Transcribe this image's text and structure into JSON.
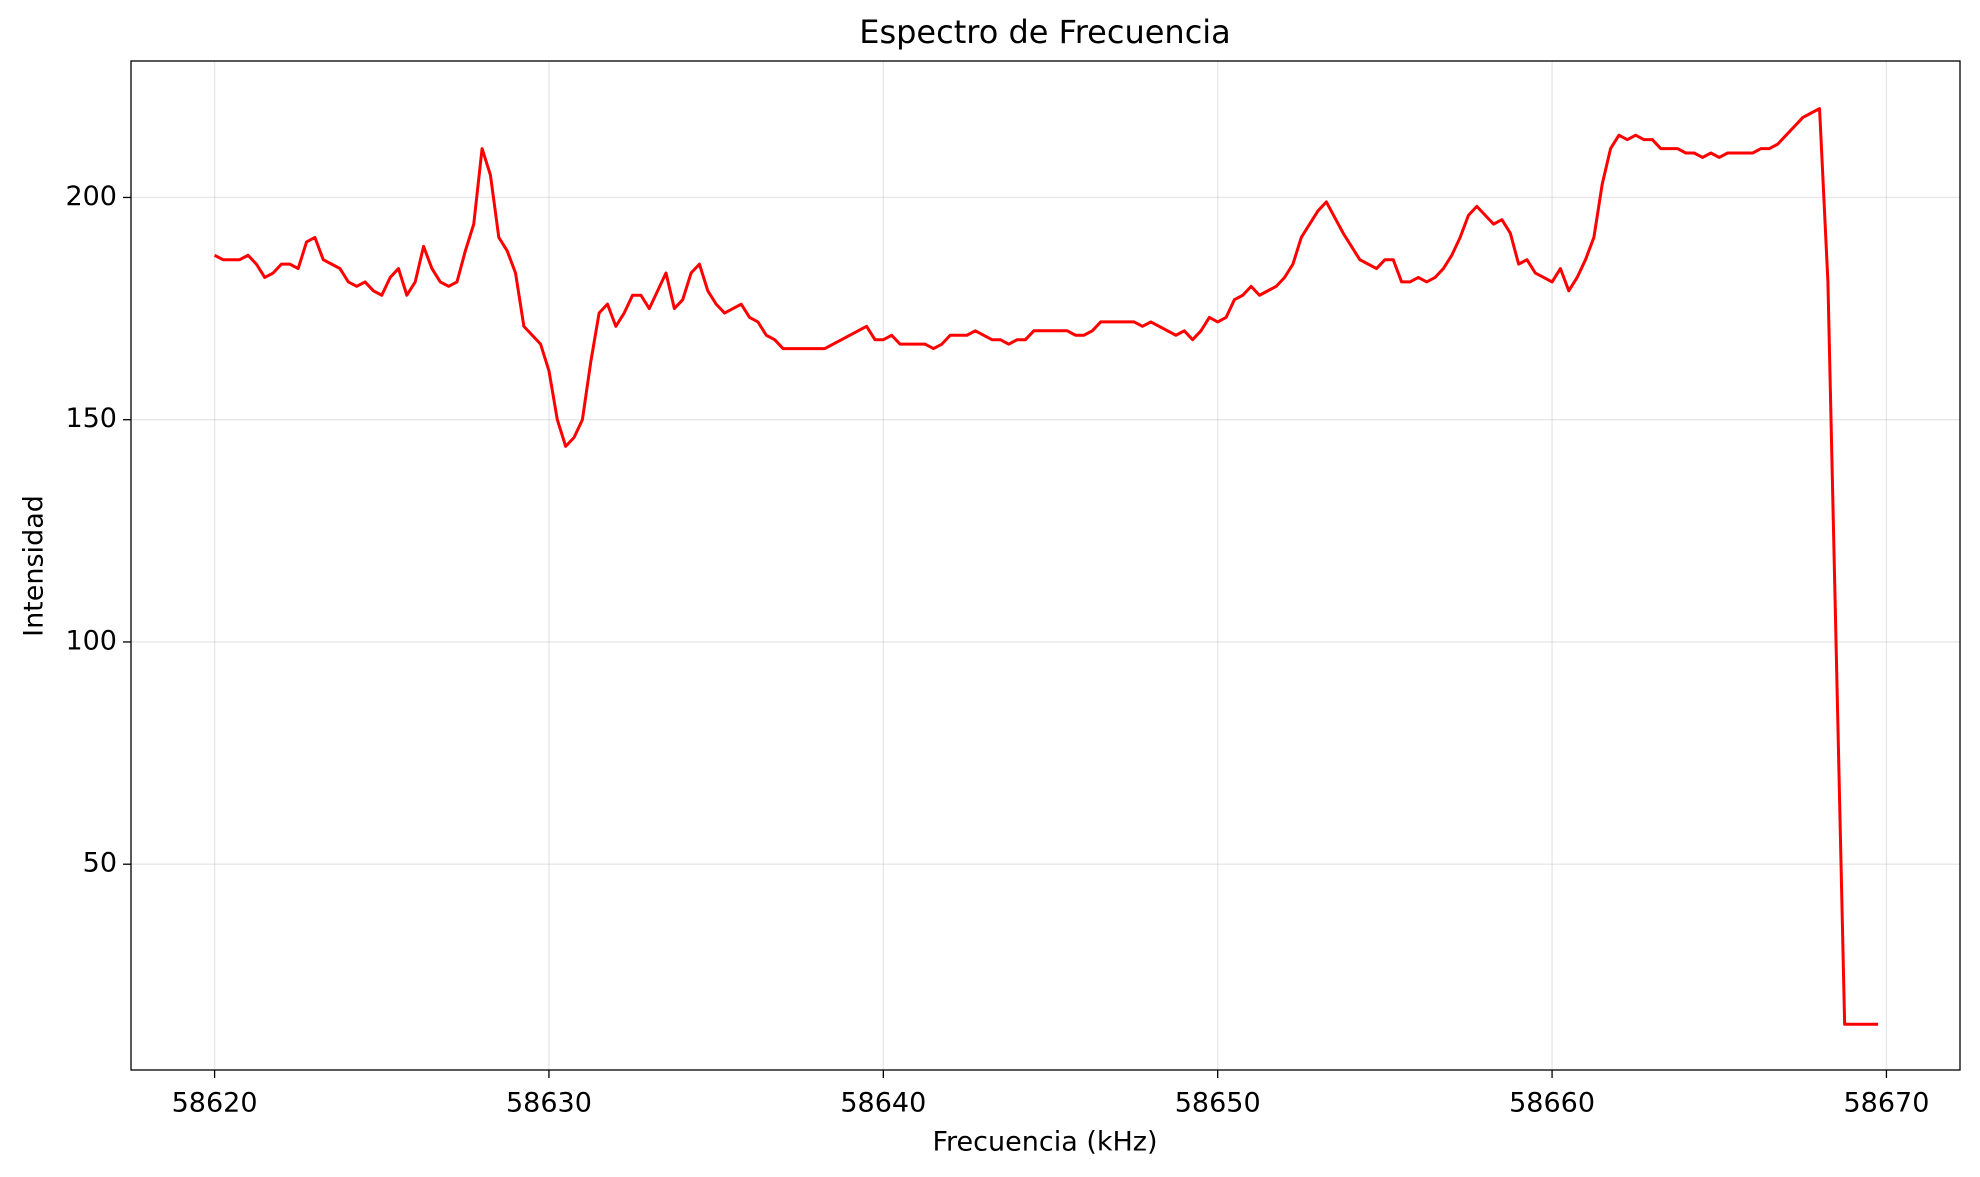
{
  "chart_data": {
    "type": "line",
    "title": "Espectro de Frecuencia",
    "xlabel": "Frecuencia (kHz)",
    "ylabel": "Intensidad",
    "x": [
      58620,
      58620.25,
      58620.5,
      58620.75,
      58621,
      58621.25,
      58621.5,
      58621.75,
      58622,
      58622.25,
      58622.5,
      58622.75,
      58623,
      58623.25,
      58623.5,
      58623.75,
      58624,
      58624.25,
      58624.5,
      58624.75,
      58625,
      58625.25,
      58625.5,
      58625.75,
      58626,
      58626.25,
      58626.5,
      58626.75,
      58627,
      58627.25,
      58627.5,
      58627.75,
      58628,
      58628.25,
      58628.5,
      58628.75,
      58629,
      58629.25,
      58629.75,
      58630,
      58630.25,
      58630.5,
      58630.75,
      58631,
      58631.25,
      58631.5,
      58631.75,
      58632,
      58632.25,
      58632.5,
      58632.75,
      58633,
      58633.5,
      58633.75,
      58634,
      58634.25,
      58634.5,
      58634.75,
      58635,
      58635.25,
      58635.75,
      58636,
      58636.25,
      58636.5,
      58636.75,
      58637,
      58638.25,
      58639.5,
      58639.75,
      58640,
      58640.25,
      58640.5,
      58641.25,
      58641.5,
      58641.75,
      58642,
      58642.5,
      58642.75,
      58643.25,
      58643.5,
      58643.75,
      58644,
      58644.25,
      58644.5,
      58645.5,
      58645.75,
      58646,
      58646.25,
      58646.5,
      58647.5,
      58647.75,
      58648,
      58648.75,
      58649,
      58649.25,
      58649.5,
      58649.75,
      58650,
      58650.25,
      58650.5,
      58650.75,
      58651,
      58651.25,
      58651.75,
      58652,
      58652.25,
      58652.5,
      58653,
      58653.25,
      58653.75,
      58654.25,
      58654.5,
      58654.75,
      58655,
      58655.25,
      58655.5,
      58655.75,
      58656,
      58656.25,
      58656.5,
      58656.75,
      58657,
      58657.25,
      58657.5,
      58657.75,
      58658,
      58658.25,
      58658.5,
      58658.75,
      58659,
      58659.25,
      58659.5,
      58659.75,
      58660,
      58660.25,
      58660.5,
      58660.75,
      58661,
      58661.25,
      58661.5,
      58661.75,
      58662,
      58662.25,
      58662.5,
      58662.75,
      58663,
      58663.25,
      58663.75,
      58664,
      58664.25,
      58664.5,
      58664.75,
      58665,
      58665.25,
      58666,
      58666.25,
      58666.5,
      58666.75,
      58667.5,
      58667.75,
      58668,
      58668.25,
      58668.75,
      58669.75
    ],
    "series": [
      {
        "name": "Intensidad",
        "color": "#ff0000",
        "values": [
          187,
          186,
          186,
          186,
          187,
          185,
          182,
          183,
          185,
          185,
          184,
          190,
          191,
          186,
          185,
          184,
          181,
          180,
          181,
          179,
          178,
          182,
          184,
          178,
          181,
          189,
          184,
          181,
          180,
          181,
          188,
          194,
          211,
          205,
          191,
          188,
          183,
          171,
          167,
          161,
          150,
          144,
          146,
          150,
          163,
          174,
          176,
          171,
          174,
          178,
          178,
          175,
          183,
          175,
          177,
          183,
          185,
          179,
          176,
          174,
          176,
          173,
          172,
          169,
          168,
          166,
          166,
          171,
          168,
          168,
          169,
          167,
          167,
          166,
          167,
          169,
          169,
          170,
          168,
          168,
          167,
          168,
          168,
          170,
          170,
          169,
          169,
          170,
          172,
          172,
          171,
          172,
          169,
          170,
          168,
          170,
          173,
          172,
          173,
          177,
          178,
          180,
          178,
          180,
          182,
          185,
          191,
          197,
          199,
          192,
          186,
          185,
          184,
          186,
          186,
          181,
          181,
          182,
          181,
          182,
          184,
          187,
          191,
          196,
          198,
          196,
          194,
          195,
          192,
          185,
          186,
          183,
          182,
          181,
          184,
          179,
          182,
          186,
          191,
          203,
          211,
          214,
          213,
          214,
          213,
          213,
          211,
          211,
          210,
          210,
          209,
          210,
          209,
          210,
          210,
          211,
          211,
          212,
          218,
          219,
          220,
          181,
          14,
          14
        ]
      }
    ],
    "xlim": [
      58617.5,
      58672.2
    ],
    "ylim": [
      3.7,
      230.7
    ],
    "xticks": [
      58620,
      58630,
      58640,
      58650,
      58660,
      58670
    ],
    "yticks": [
      50,
      100,
      150,
      200
    ],
    "grid": true
  }
}
